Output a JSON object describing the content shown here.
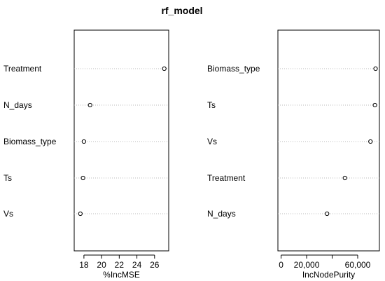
{
  "title": "rf_model",
  "chart_data": [
    {
      "type": "scatter",
      "variables": [
        "Treatment",
        "N_days",
        "Biomass_type",
        "Ts",
        "Vs"
      ],
      "values": [
        27.1,
        18.7,
        18.0,
        17.9,
        17.6
      ],
      "xlabel": "%IncMSE",
      "xlim": [
        16.9,
        27.6
      ],
      "xticks": [
        18,
        20,
        22,
        24,
        26
      ],
      "xtick_labels": [
        "18",
        "20",
        "22",
        "24",
        "26"
      ]
    },
    {
      "type": "scatter",
      "variables": [
        "Biomass_type",
        "Ts",
        "Vs",
        "Treatment",
        "N_days"
      ],
      "values": [
        74000,
        73500,
        70000,
        50000,
        36000
      ],
      "xlabel": "IncNodePurity",
      "xlim": [
        -2500,
        77000
      ],
      "xticks": [
        0,
        20000,
        40000,
        60000
      ],
      "xtick_labels": [
        "0",
        "20,000",
        "",
        "60,000"
      ]
    }
  ]
}
